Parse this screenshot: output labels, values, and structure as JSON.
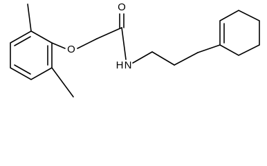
{
  "atoms": {
    "ether_oxygen": "O",
    "carbonyl_oxygen": "O",
    "nitrogen": "N",
    "hydrogen": "H"
  }
}
